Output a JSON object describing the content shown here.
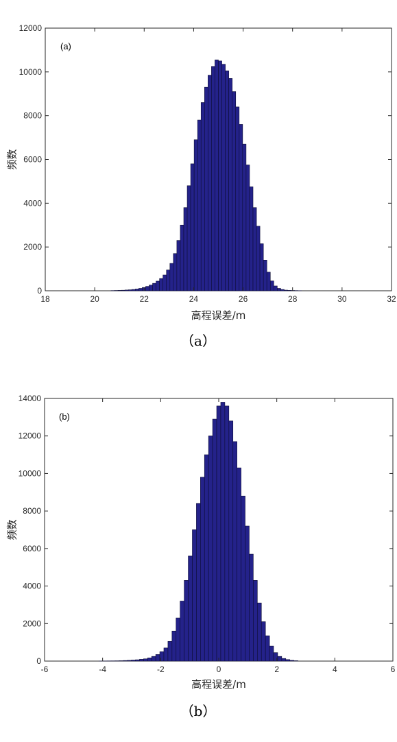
{
  "colors": {
    "bar_fill": "#24228a",
    "bar_edge": "#0d0d35",
    "axis": "#262626"
  },
  "charts": [
    {
      "caption": "（a）",
      "chart_data": {
        "type": "bar",
        "panel_label": "(a)",
        "xlabel": "高程误差/m",
        "ylabel": "频数",
        "xlim": [
          18,
          32
        ],
        "ylim": [
          0,
          12000
        ],
        "xticks": [
          "18",
          "20",
          "22",
          "24",
          "26",
          "28",
          "30",
          "32"
        ],
        "yticks": [
          "0",
          "2000",
          "4000",
          "6000",
          "8000",
          "10000",
          "12000"
        ],
        "bin_width": 0.14,
        "x": [
          20.73,
          20.87,
          21.01,
          21.15,
          21.29,
          21.43,
          21.57,
          21.71,
          21.85,
          21.99,
          22.13,
          22.27,
          22.41,
          22.55,
          22.69,
          22.83,
          22.97,
          23.11,
          23.25,
          23.39,
          23.53,
          23.67,
          23.81,
          23.95,
          24.09,
          24.23,
          24.37,
          24.51,
          24.65,
          24.79,
          24.93,
          25.07,
          25.21,
          25.35,
          25.49,
          25.63,
          25.77,
          25.91,
          26.05,
          26.19,
          26.33,
          26.47,
          26.61,
          26.75,
          26.89,
          27.03,
          27.17,
          27.31,
          27.45,
          27.59,
          27.73,
          27.87,
          28.01,
          28.15,
          28.29
        ],
        "values": [
          10,
          15,
          20,
          25,
          35,
          45,
          60,
          80,
          110,
          150,
          200,
          260,
          340,
          440,
          560,
          720,
          950,
          1250,
          1700,
          2300,
          3000,
          3800,
          4800,
          5800,
          6900,
          7800,
          8600,
          9300,
          9850,
          10250,
          10550,
          10500,
          10350,
          10050,
          9700,
          9100,
          8400,
          7600,
          6700,
          5750,
          4750,
          3800,
          2950,
          2150,
          1400,
          850,
          450,
          220,
          110,
          60,
          30,
          20,
          15,
          10,
          5
        ]
      }
    },
    {
      "caption": "（b）",
      "chart_data": {
        "type": "bar",
        "panel_label": "(b)",
        "xlabel": "高程误差/m",
        "ylabel": "频数",
        "xlim": [
          -6,
          6
        ],
        "ylim": [
          0,
          14000
        ],
        "xticks": [
          "-6",
          "-4",
          "-2",
          "0",
          "2",
          "4",
          "6"
        ],
        "yticks": [
          "0",
          "2000",
          "4000",
          "6000",
          "8000",
          "10000",
          "12000",
          "14000"
        ],
        "bin_width": 0.14,
        "x": [
          -4.06,
          -3.92,
          -3.78,
          -3.64,
          -3.5,
          -3.36,
          -3.22,
          -3.08,
          -2.94,
          -2.8,
          -2.66,
          -2.52,
          -2.38,
          -2.24,
          -2.1,
          -1.96,
          -1.82,
          -1.68,
          -1.54,
          -1.4,
          -1.26,
          -1.12,
          -0.98,
          -0.84,
          -0.7,
          -0.56,
          -0.42,
          -0.28,
          -0.14,
          0,
          0.14,
          0.28,
          0.42,
          0.56,
          0.7,
          0.84,
          0.98,
          1.12,
          1.26,
          1.4,
          1.54,
          1.68,
          1.82,
          1.96,
          2.1,
          2.24,
          2.38,
          2.52,
          2.66
        ],
        "values": [
          5,
          8,
          10,
          12,
          15,
          20,
          30,
          40,
          55,
          70,
          95,
          120,
          170,
          250,
          350,
          500,
          700,
          1050,
          1600,
          2300,
          3200,
          4300,
          5600,
          7000,
          8400,
          9800,
          11000,
          12000,
          12900,
          13600,
          13800,
          13600,
          12800,
          11700,
          10300,
          8800,
          7200,
          5700,
          4300,
          3100,
          2100,
          1350,
          800,
          450,
          250,
          140,
          80,
          40,
          20
        ]
      }
    }
  ]
}
